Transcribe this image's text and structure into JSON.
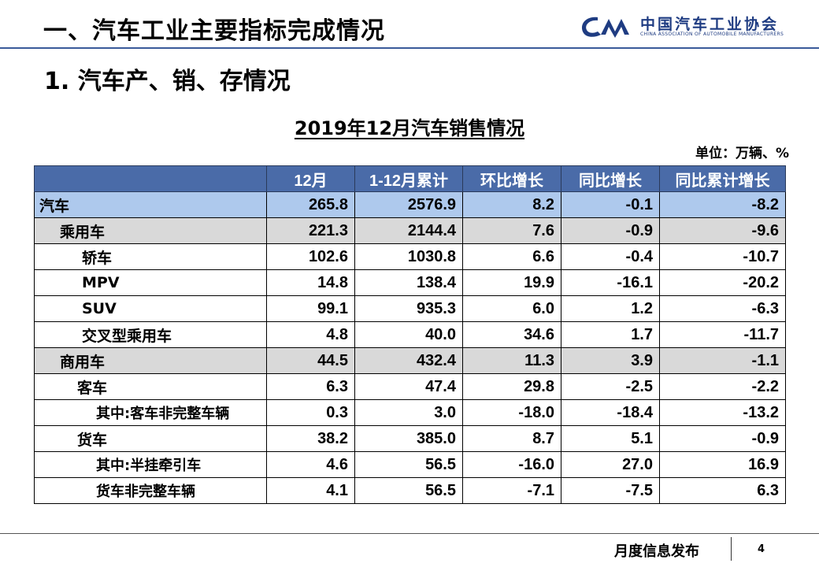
{
  "header": {
    "title": "一、汽车工业主要指标完成情况",
    "logo_cn": "中国汽车工业协会",
    "logo_en": "CHINA ASSOCIATION OF AUTOMOBILE MANUFACTURERS",
    "logo_mark": "CAAM logo"
  },
  "section_title": "1. 汽车产、销、存情况",
  "table": {
    "title": "2019年12月汽车销售情况",
    "unit": "单位：万辆、%",
    "columns": [
      "12月",
      "1-12月累计",
      "环比增长",
      "同比增长",
      "同比累计增长"
    ],
    "rows": [
      {
        "name": "汽车",
        "values": [
          "265.8",
          "2576.9",
          "8.2",
          "-0.1",
          "-8.2"
        ]
      },
      {
        "name": "乘用车",
        "values": [
          "221.3",
          "2144.4",
          "7.6",
          "-0.9",
          "-9.6"
        ]
      },
      {
        "name": "轿车",
        "values": [
          "102.6",
          "1030.8",
          "6.6",
          "-0.4",
          "-10.7"
        ]
      },
      {
        "name": "MPV",
        "values": [
          "14.8",
          "138.4",
          "19.9",
          "-16.1",
          "-20.2"
        ]
      },
      {
        "name": "SUV",
        "values": [
          "99.1",
          "935.3",
          "6.0",
          "1.2",
          "-6.3"
        ]
      },
      {
        "name": "交叉型乘用车",
        "values": [
          "4.8",
          "40.0",
          "34.6",
          "1.7",
          "-11.7"
        ]
      },
      {
        "name": "商用车",
        "values": [
          "44.5",
          "432.4",
          "11.3",
          "3.9",
          "-1.1"
        ]
      },
      {
        "name": "客车",
        "values": [
          "6.3",
          "47.4",
          "29.8",
          "-2.5",
          "-2.2"
        ]
      },
      {
        "name": "其中:客车非完整车辆",
        "values": [
          "0.3",
          "3.0",
          "-18.0",
          "-18.4",
          "-13.2"
        ]
      },
      {
        "name": "货车",
        "values": [
          "38.2",
          "385.0",
          "8.7",
          "5.1",
          "-0.9"
        ]
      },
      {
        "name": "其中:半挂牵引车",
        "values": [
          "4.6",
          "56.5",
          "-16.0",
          "27.0",
          "16.9"
        ]
      },
      {
        "name": "货车非完整车辆",
        "values": [
          "4.1",
          "56.5",
          "-7.1",
          "-7.5",
          "6.3"
        ]
      }
    ]
  },
  "footer": {
    "label": "月度信息发布",
    "page": "4"
  },
  "colors": {
    "header_fill": "#4a6ba8",
    "highlight_row": "#aec9ed",
    "group_row": "#d9d9d9",
    "logo_blue": "#1f3c82"
  }
}
